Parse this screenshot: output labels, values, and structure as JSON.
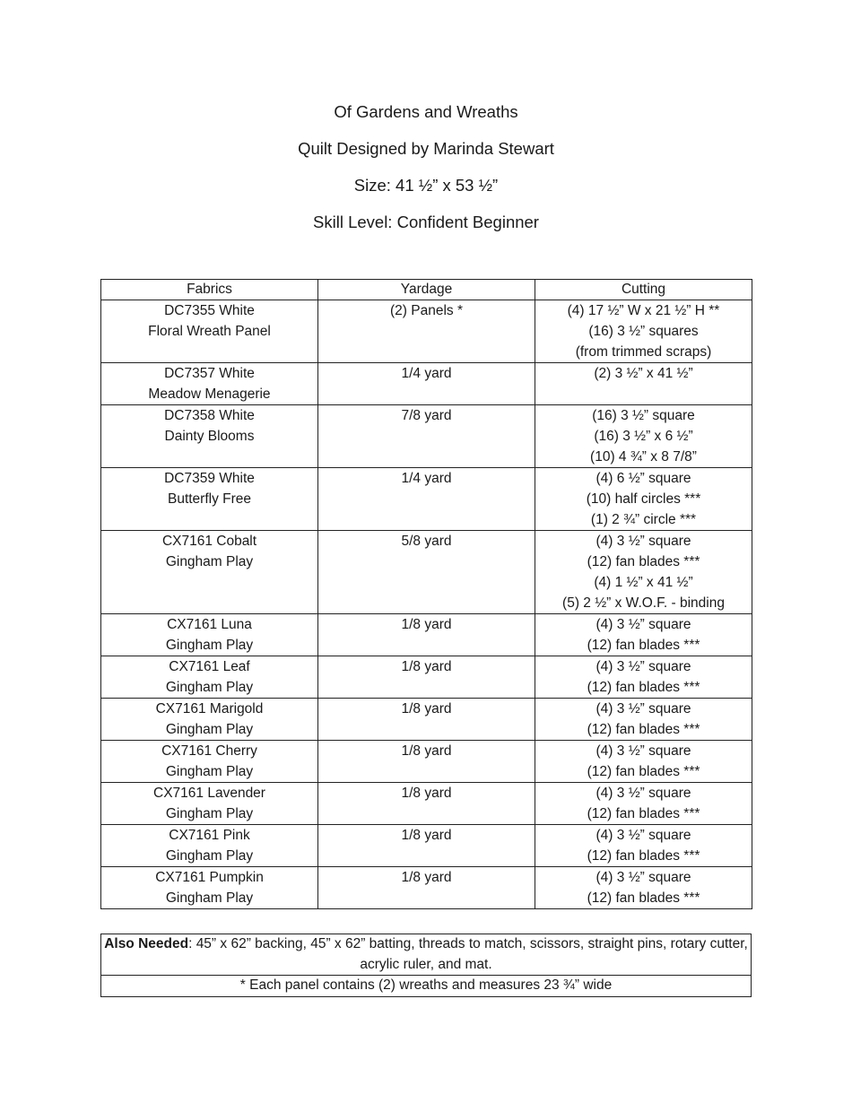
{
  "header": {
    "title": "Of Gardens and Wreaths",
    "designer": "Quilt Designed by Marinda Stewart",
    "size": "Size: 41 ½” x 53 ½”",
    "skill": "Skill Level: Confident Beginner"
  },
  "table": {
    "columns": [
      "Fabrics",
      "Yardage",
      "Cutting"
    ],
    "rows": [
      {
        "fabric": [
          "DC7355 White",
          "Floral Wreath Panel"
        ],
        "yardage": "(2) Panels *",
        "cutting": [
          "(4) 17 ½” W x 21 ½” H **",
          "(16) 3 ½” squares",
          "(from trimmed scraps)"
        ]
      },
      {
        "fabric": [
          "DC7357 White",
          "Meadow Menagerie"
        ],
        "yardage": "1/4 yard",
        "cutting": [
          "(2) 3 ½” x 41 ½”"
        ]
      },
      {
        "fabric": [
          "DC7358 White",
          "Dainty Blooms"
        ],
        "yardage": "7/8 yard",
        "cutting": [
          "(16) 3 ½” square",
          "(16) 3 ½” x 6 ½”",
          "(10) 4 ¾” x 8 7/8”"
        ]
      },
      {
        "fabric": [
          "DC7359 White",
          "Butterfly Free"
        ],
        "yardage": "1/4 yard",
        "cutting": [
          "(4) 6 ½” square",
          "(10) half circles ***",
          "(1) 2 ¾” circle ***"
        ]
      },
      {
        "fabric": [
          "CX7161 Cobalt",
          "Gingham Play"
        ],
        "yardage": "5/8 yard",
        "cutting": [
          "(4) 3 ½” square",
          "(12) fan blades ***",
          "(4) 1 ½” x 41 ½”",
          "(5) 2 ½” x W.O.F. - binding"
        ]
      },
      {
        "fabric": [
          "CX7161 Luna",
          "Gingham Play"
        ],
        "yardage": "1/8 yard",
        "cutting": [
          "(4) 3 ½” square",
          "(12) fan blades ***"
        ]
      },
      {
        "fabric": [
          "CX7161 Leaf",
          "Gingham Play"
        ],
        "yardage": "1/8 yard",
        "cutting": [
          "(4) 3 ½” square",
          "(12) fan blades ***"
        ]
      },
      {
        "fabric": [
          "CX7161 Marigold",
          "Gingham Play"
        ],
        "yardage": "1/8 yard",
        "cutting": [
          "(4) 3 ½” square",
          "(12) fan blades ***"
        ]
      },
      {
        "fabric": [
          "CX7161 Cherry",
          "Gingham Play"
        ],
        "yardage": "1/8 yard",
        "cutting": [
          "(4) 3 ½” square",
          "(12) fan blades ***"
        ]
      },
      {
        "fabric": [
          "CX7161 Lavender",
          "Gingham Play"
        ],
        "yardage": "1/8 yard",
        "cutting": [
          "(4) 3 ½” square",
          "(12) fan blades ***"
        ]
      },
      {
        "fabric": [
          "CX7161 Pink",
          "Gingham Play"
        ],
        "yardage": "1/8 yard",
        "cutting": [
          "(4) 3 ½” square",
          "(12) fan blades ***"
        ]
      },
      {
        "fabric": [
          "CX7161 Pumpkin",
          "Gingham Play"
        ],
        "yardage": "1/8 yard",
        "cutting": [
          "(4) 3 ½” square",
          "(12) fan blades ***"
        ]
      }
    ]
  },
  "notes": {
    "also_needed_label": "Also Needed",
    "also_needed_text": ": 45” x 62” backing, 45” x 62” batting, threads to match, scissors, straight pins, rotary cutter, acrylic ruler, and mat.",
    "footnote": "* Each panel contains (2) wreaths and measures 23 ¾” wide"
  }
}
